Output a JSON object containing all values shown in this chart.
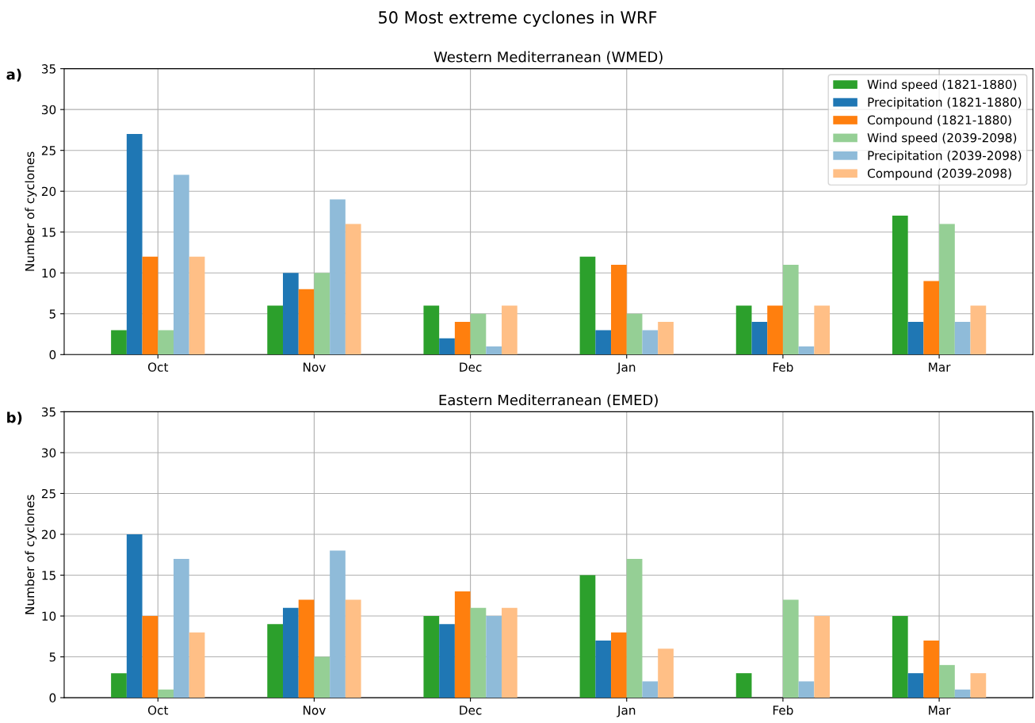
{
  "chart_data": [
    {
      "type": "bar",
      "title": "Western Mediterranean (WMED)",
      "ylabel": "Number of cyclones",
      "annotations": [
        "a)",
        "50 Most extreme cyclones in WRF"
      ],
      "categories": [
        "Oct",
        "Nov",
        "Dec",
        "Jan",
        "Feb",
        "Mar"
      ],
      "series": [
        {
          "name": "Wind speed (1821-1880)",
          "color": "#2ca02c",
          "values": [
            3,
            6,
            6,
            12,
            6,
            17
          ]
        },
        {
          "name": "Precipitation (1821-1880)",
          "color": "#1f77b4",
          "values": [
            27,
            10,
            2,
            3,
            4,
            4
          ]
        },
        {
          "name": "Compound (1821-1880)",
          "color": "#ff7f0e",
          "values": [
            12,
            8,
            4,
            11,
            6,
            9
          ]
        },
        {
          "name": "Wind speed (2039-2098)",
          "color": "#95cf95",
          "values": [
            3,
            10,
            5,
            5,
            11,
            16
          ]
        },
        {
          "name": "Precipitation (2039-2098)",
          "color": "#8fbbd9",
          "values": [
            22,
            19,
            1,
            3,
            1,
            4
          ]
        },
        {
          "name": "Compound (2039-2098)",
          "color": "#ffbf86",
          "values": [
            12,
            16,
            6,
            4,
            6,
            6
          ]
        }
      ],
      "ylim": [
        0,
        35
      ],
      "yticks": [
        0,
        5,
        10,
        15,
        20,
        25,
        30,
        35
      ],
      "grid": true,
      "legend": "top right"
    },
    {
      "type": "bar",
      "title": "Eastern Mediterranean (EMED)",
      "ylabel": "Number of cyclones",
      "annotations": [
        "b)"
      ],
      "categories": [
        "Oct",
        "Nov",
        "Dec",
        "Jan",
        "Feb",
        "Mar"
      ],
      "series": [
        {
          "color": "#2ca02c",
          "values": [
            3,
            9,
            10,
            15,
            3,
            10
          ]
        },
        {
          "color": "#1f77b4",
          "values": [
            20,
            11,
            9,
            7,
            0,
            3
          ]
        },
        {
          "color": "#ff7f0e",
          "values": [
            10,
            12,
            13,
            8,
            0,
            7
          ]
        },
        {
          "color": "#95cf95",
          "values": [
            1,
            5,
            11,
            17,
            12,
            4
          ]
        },
        {
          "color": "#8fbbd9",
          "values": [
            17,
            18,
            10,
            2,
            2,
            1
          ]
        },
        {
          "color": "#ffbf86",
          "values": [
            8,
            12,
            11,
            6,
            10,
            3
          ]
        }
      ],
      "ylim": [
        0,
        35
      ],
      "yticks": [
        0,
        5,
        10,
        15,
        20,
        25,
        30,
        35
      ],
      "grid": true
    }
  ]
}
